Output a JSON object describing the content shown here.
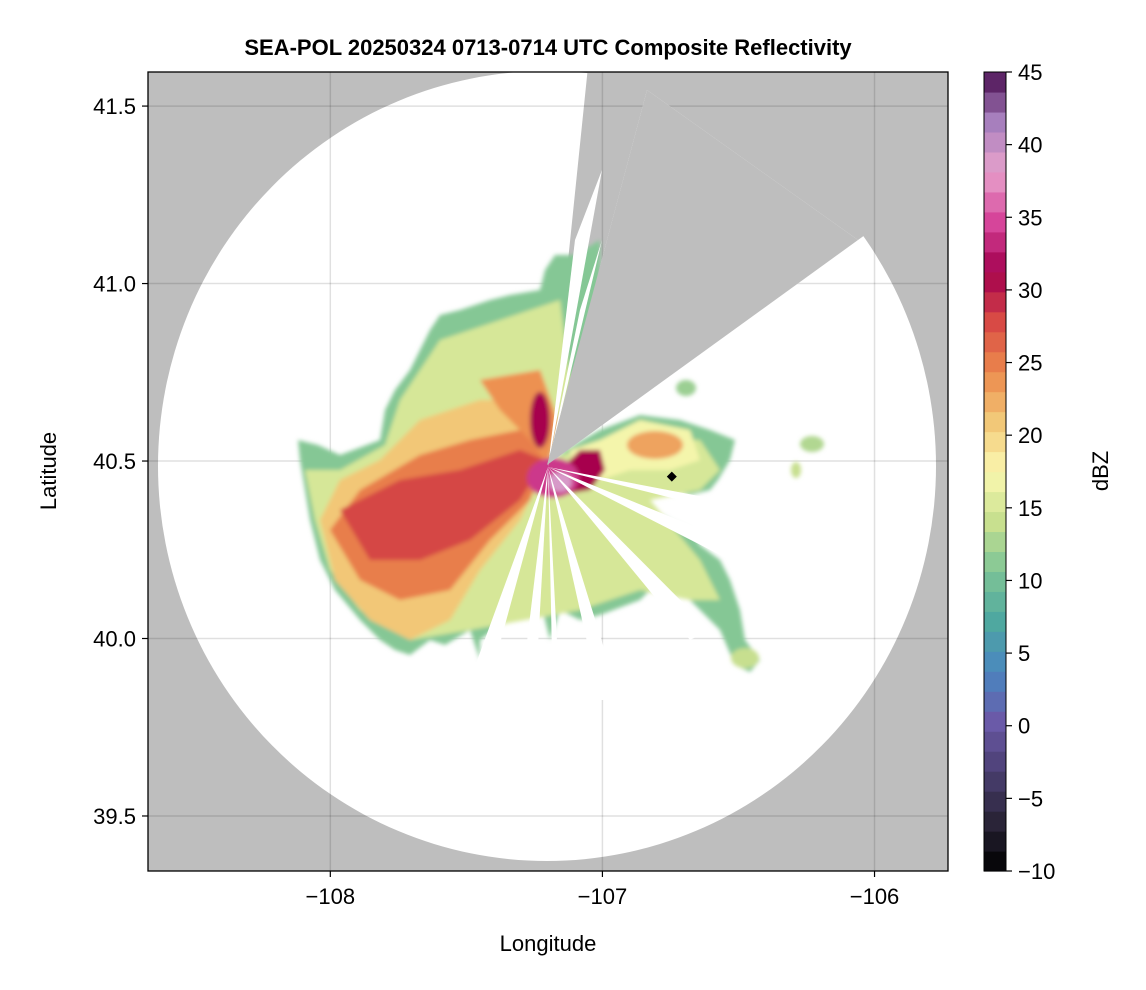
{
  "chart_data": {
    "type": "heatmap",
    "title": "SEA-POL 20250324 0713-0714 UTC Composite Reflectivity",
    "xlabel": "Longitude",
    "ylabel": "Latitude",
    "xlim": [
      -108.67,
      -105.73
    ],
    "ylim": [
      39.345,
      41.596
    ],
    "xticks": [
      -108,
      -107,
      -106
    ],
    "xtick_labels": [
      "−108",
      "−107",
      "−106"
    ],
    "yticks": [
      39.5,
      40.0,
      40.5,
      41.0,
      41.5
    ],
    "ytick_labels": [
      "39.5",
      "40.0",
      "40.5",
      "41.0",
      "41.5"
    ],
    "grid": true,
    "radar_center": {
      "lon": -107.2,
      "lat": 40.49
    },
    "marker": {
      "lon": -106.745,
      "lat": 40.456,
      "shape": "diamond",
      "color": "#000000"
    },
    "blocked_sector_color": "#bebebe",
    "colorbar": {
      "label": "dBZ",
      "range": [
        -10,
        45
      ],
      "ticks": [
        -10,
        -5,
        0,
        5,
        10,
        15,
        20,
        25,
        30,
        35,
        40,
        45
      ],
      "tick_labels": [
        "−10",
        "−5",
        "0",
        "5",
        "10",
        "15",
        "20",
        "25",
        "30",
        "35",
        "40",
        "45"
      ],
      "colormap_stops": [
        "#000000",
        "#2a2438",
        "#4b3f72",
        "#6a5aa8",
        "#4a86c0",
        "#4fa8a0",
        "#7dc496",
        "#c8e08f",
        "#fbf8b0",
        "#f2c878",
        "#ec8a4c",
        "#d84a45",
        "#a3004e",
        "#d6459a",
        "#e8a2cc",
        "#a77fbd",
        "#4b0e52"
      ]
    }
  }
}
